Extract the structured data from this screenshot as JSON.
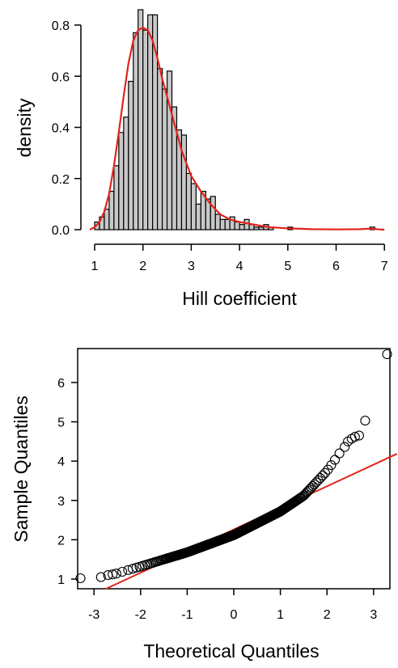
{
  "chart_data": [
    {
      "type": "bar",
      "subtype": "histogram-with-density",
      "xlabel": "Hill coefficient",
      "ylabel": "density",
      "xlim": [
        0.9,
        7
      ],
      "ylim": [
        0,
        0.86
      ],
      "x_ticks": [
        1,
        2,
        3,
        4,
        5,
        6,
        7
      ],
      "y_ticks": [
        0.0,
        0.2,
        0.4,
        0.6,
        0.8
      ],
      "y_tick_labels": [
        "0.0",
        "0.2",
        "0.4",
        "0.6",
        "0.8"
      ],
      "bin_width": 0.1,
      "bins": [
        {
          "x0": 1.0,
          "v": 0.03
        },
        {
          "x0": 1.1,
          "v": 0.05
        },
        {
          "x0": 1.2,
          "v": 0.08
        },
        {
          "x0": 1.3,
          "v": 0.15
        },
        {
          "x0": 1.4,
          "v": 0.25
        },
        {
          "x0": 1.5,
          "v": 0.38
        },
        {
          "x0": 1.6,
          "v": 0.44
        },
        {
          "x0": 1.7,
          "v": 0.58
        },
        {
          "x0": 1.8,
          "v": 0.77
        },
        {
          "x0": 1.9,
          "v": 0.86
        },
        {
          "x0": 2.0,
          "v": 0.78
        },
        {
          "x0": 2.1,
          "v": 0.84
        },
        {
          "x0": 2.2,
          "v": 0.84
        },
        {
          "x0": 2.3,
          "v": 0.63
        },
        {
          "x0": 2.4,
          "v": 0.55
        },
        {
          "x0": 2.5,
          "v": 0.62
        },
        {
          "x0": 2.6,
          "v": 0.48
        },
        {
          "x0": 2.7,
          "v": 0.39
        },
        {
          "x0": 2.8,
          "v": 0.37
        },
        {
          "x0": 2.9,
          "v": 0.22
        },
        {
          "x0": 3.0,
          "v": 0.18
        },
        {
          "x0": 3.1,
          "v": 0.1
        },
        {
          "x0": 3.2,
          "v": 0.15
        },
        {
          "x0": 3.3,
          "v": 0.12
        },
        {
          "x0": 3.4,
          "v": 0.13
        },
        {
          "x0": 3.5,
          "v": 0.06
        },
        {
          "x0": 3.6,
          "v": 0.04
        },
        {
          "x0": 3.7,
          "v": 0.04
        },
        {
          "x0": 3.8,
          "v": 0.05
        },
        {
          "x0": 3.9,
          "v": 0.03
        },
        {
          "x0": 4.0,
          "v": 0.02
        },
        {
          "x0": 4.1,
          "v": 0.04
        },
        {
          "x0": 4.2,
          "v": 0.02
        },
        {
          "x0": 4.3,
          "v": 0.01
        },
        {
          "x0": 4.4,
          "v": 0.01
        },
        {
          "x0": 4.5,
          "v": 0.02
        },
        {
          "x0": 4.6,
          "v": 0.01
        },
        {
          "x0": 5.0,
          "v": 0.01
        },
        {
          "x0": 6.7,
          "v": 0.01
        }
      ],
      "density_curve": {
        "color": "#e2231a",
        "x": [
          0.9,
          1.0,
          1.1,
          1.2,
          1.3,
          1.4,
          1.5,
          1.6,
          1.7,
          1.8,
          1.9,
          2.0,
          2.1,
          2.2,
          2.3,
          2.4,
          2.5,
          2.6,
          2.7,
          2.8,
          2.9,
          3.0,
          3.2,
          3.4,
          3.6,
          3.8,
          4.0,
          4.3,
          4.6,
          5.0,
          5.5,
          6.0,
          6.5,
          6.7,
          6.9,
          7.0
        ],
        "y": [
          0.0,
          0.01,
          0.03,
          0.07,
          0.14,
          0.25,
          0.38,
          0.52,
          0.65,
          0.74,
          0.78,
          0.79,
          0.78,
          0.74,
          0.67,
          0.59,
          0.52,
          0.45,
          0.38,
          0.31,
          0.26,
          0.21,
          0.15,
          0.1,
          0.06,
          0.04,
          0.03,
          0.02,
          0.01,
          0.005,
          0.002,
          0.001,
          0.002,
          0.004,
          0.001,
          0.0
        ]
      }
    },
    {
      "type": "scatter",
      "subtype": "qq-plot",
      "xlabel": "Theoretical Quantiles",
      "ylabel": "Sample Quantiles",
      "xlim": [
        -3.5,
        3.5
      ],
      "ylim": [
        0.75,
        6.95
      ],
      "x_ticks": [
        -3,
        -2,
        -1,
        0,
        1,
        2,
        3
      ],
      "y_ticks": [
        1,
        2,
        3,
        4,
        5,
        6
      ],
      "reference_line": {
        "color": "#e2231a",
        "intercept": 2.26,
        "slope": 0.55
      },
      "outliers": [
        {
          "x": 3.29,
          "y": 6.72
        },
        {
          "x": 2.82,
          "y": 5.03
        },
        {
          "x": 2.69,
          "y": 4.65
        },
        {
          "x": 2.6,
          "y": 4.62
        },
        {
          "x": 2.53,
          "y": 4.57
        },
        {
          "x": 2.45,
          "y": 4.5
        },
        {
          "x": 2.38,
          "y": 4.36
        },
        {
          "x": -3.29,
          "y": 1.02
        },
        {
          "x": -2.85,
          "y": 1.05
        },
        {
          "x": -2.7,
          "y": 1.1
        },
        {
          "x": -2.6,
          "y": 1.12
        },
        {
          "x": -2.52,
          "y": 1.14
        }
      ]
    }
  ]
}
